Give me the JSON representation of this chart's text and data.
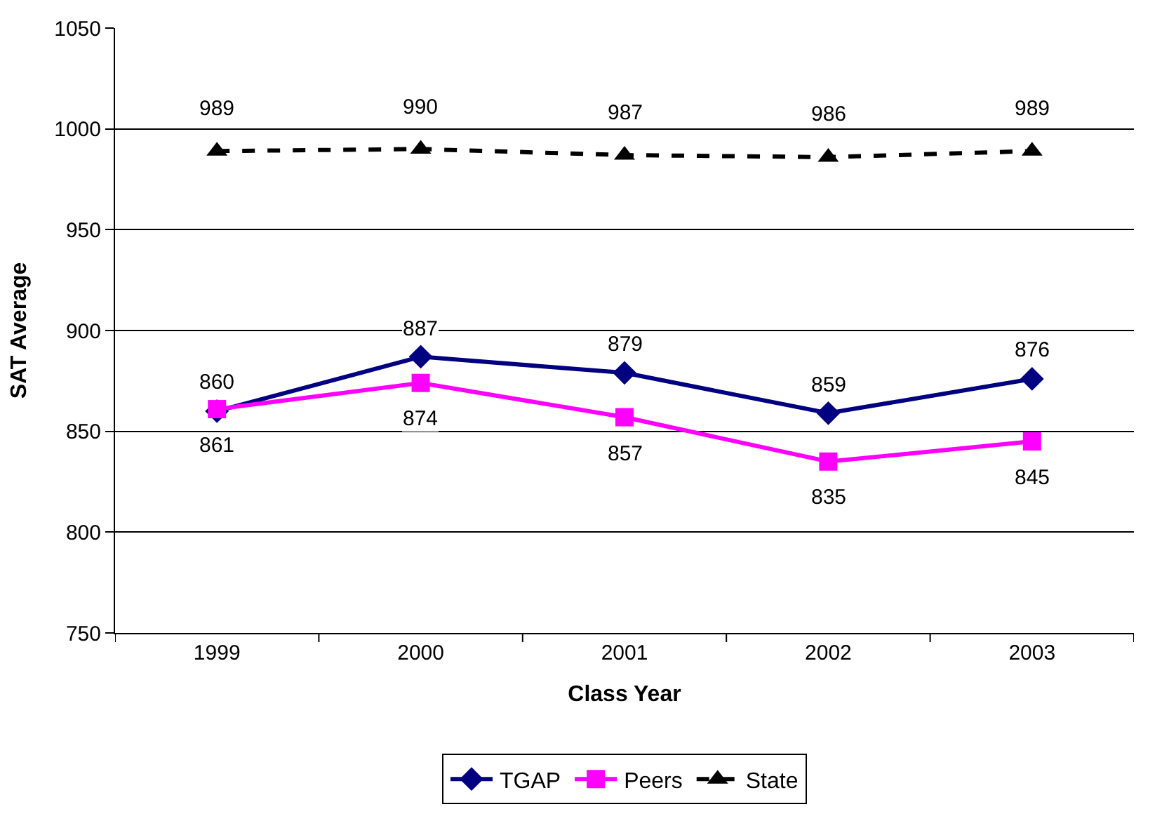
{
  "chart_data": {
    "type": "line",
    "xlabel": "Class Year",
    "ylabel": "SAT Average",
    "categories": [
      "1999",
      "2000",
      "2001",
      "2002",
      "2003"
    ],
    "ylim": [
      750,
      1050
    ],
    "yticks": [
      750,
      800,
      850,
      900,
      950,
      1000,
      1050
    ],
    "grid": "y",
    "legend": "bottom",
    "data_labels": true,
    "series": [
      {
        "name": "TGAP",
        "color": "#000080",
        "values": [
          860,
          887,
          879,
          859,
          876
        ],
        "marker": "diamond",
        "line_style": "solid"
      },
      {
        "name": "Peers",
        "color": "#ff00ff",
        "values": [
          861,
          874,
          857,
          835,
          845
        ],
        "marker": "square",
        "line_style": "solid"
      },
      {
        "name": "State",
        "color": "#000000",
        "values": [
          989,
          990,
          987,
          986,
          989
        ],
        "marker": "triangle",
        "line_style": "dashed"
      }
    ]
  }
}
